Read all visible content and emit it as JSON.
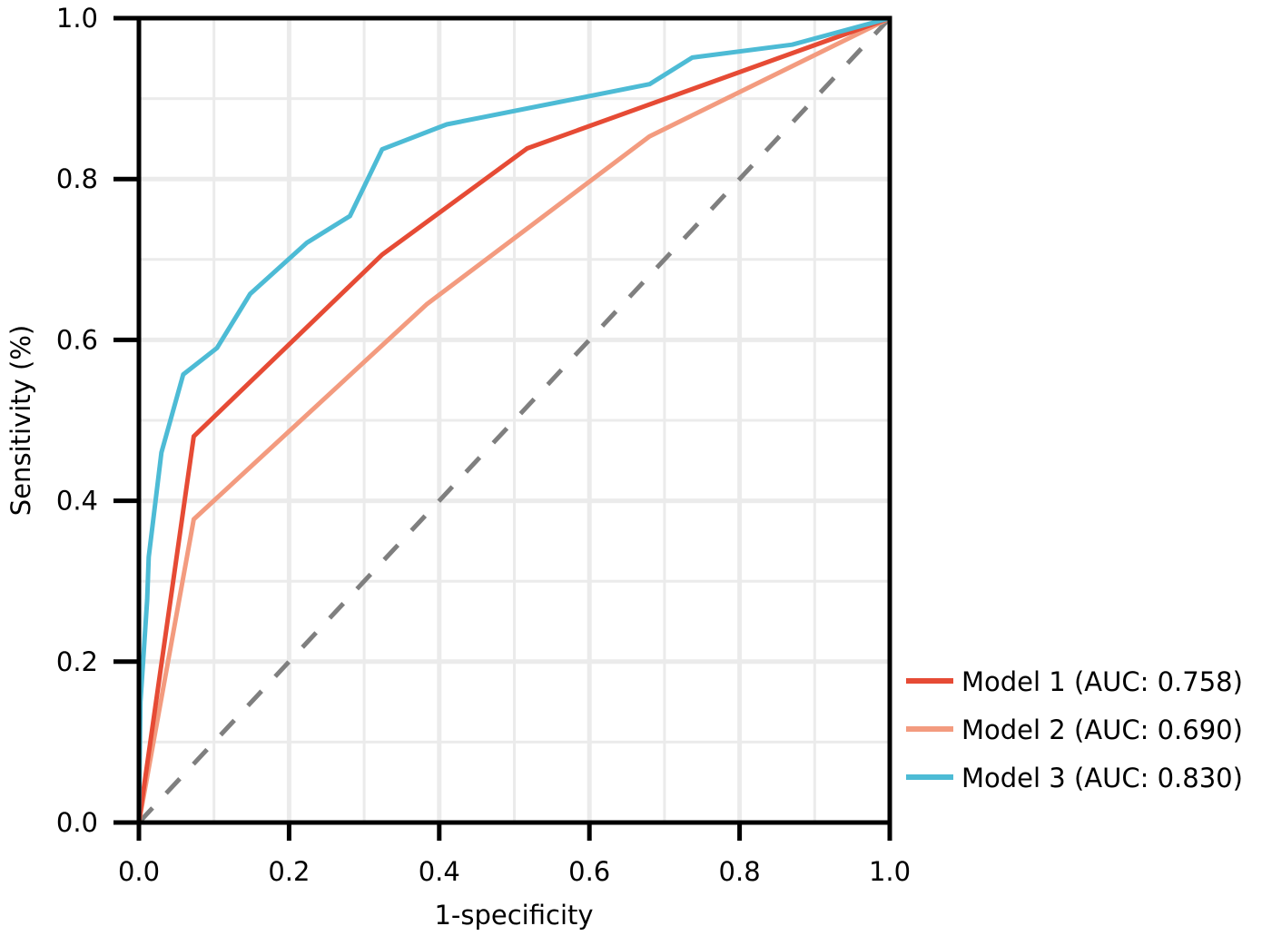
{
  "chart_data": {
    "type": "line",
    "title": "",
    "xlabel": "1-specificity",
    "ylabel": "Sensitivity (%)",
    "xlim": [
      0,
      1
    ],
    "ylim": [
      0,
      1
    ],
    "grid": true,
    "x_ticks": [
      0.0,
      0.2,
      0.4,
      0.6,
      0.8,
      1.0
    ],
    "x_tick_labels": [
      "0.0",
      "0.2",
      "0.4",
      "0.6",
      "0.8",
      "1.0"
    ],
    "y_ticks": [
      0.0,
      0.2,
      0.4,
      0.6,
      0.8,
      1.0
    ],
    "y_tick_labels": [
      "0.0",
      "0.2",
      "0.4",
      "0.6",
      "0.8",
      "1.0"
    ],
    "legend_position": "right-bottom-outside",
    "series": [
      {
        "name": "Model 1 (AUC: 0.758)",
        "color": "#E64B35",
        "auc": 0.758,
        "x": [
          0.0,
          0.073,
          0.324,
          0.517,
          1.0
        ],
        "y": [
          0.0,
          0.48,
          0.706,
          0.838,
          1.0
        ]
      },
      {
        "name": "Model 2 (AUC: 0.690)",
        "color": "#F39B7F",
        "auc": 0.69,
        "x": [
          0.0,
          0.073,
          0.383,
          0.68,
          1.0
        ],
        "y": [
          0.0,
          0.377,
          0.644,
          0.853,
          1.0
        ]
      },
      {
        "name": "Model 3 (AUC: 0.830)",
        "color": "#4DBBD5",
        "auc": 0.83,
        "x": [
          0.0,
          0.002,
          0.011,
          0.013,
          0.03,
          0.059,
          0.104,
          0.148,
          0.224,
          0.281,
          0.324,
          0.41,
          0.68,
          0.737,
          0.87,
          1.0
        ],
        "y": [
          0.0,
          0.15,
          0.277,
          0.33,
          0.46,
          0.557,
          0.59,
          0.657,
          0.721,
          0.754,
          0.837,
          0.868,
          0.918,
          0.951,
          0.967,
          1.0
        ]
      }
    ],
    "reference_line": {
      "name": "chance",
      "x": [
        0,
        1
      ],
      "y": [
        0,
        1
      ],
      "color": "#7F7F7F",
      "style": "dashed"
    }
  },
  "legend": {
    "items": [
      {
        "label": "Model 1 (AUC: 0.758)",
        "color": "#E64B35"
      },
      {
        "label": "Model 2 (AUC: 0.690)",
        "color": "#F39B7F"
      },
      {
        "label": "Model 3 (AUC: 0.830)",
        "color": "#4DBBD5"
      }
    ]
  },
  "axes": {
    "x_title": "1-specificity",
    "y_title": "Sensitivity (%)"
  }
}
